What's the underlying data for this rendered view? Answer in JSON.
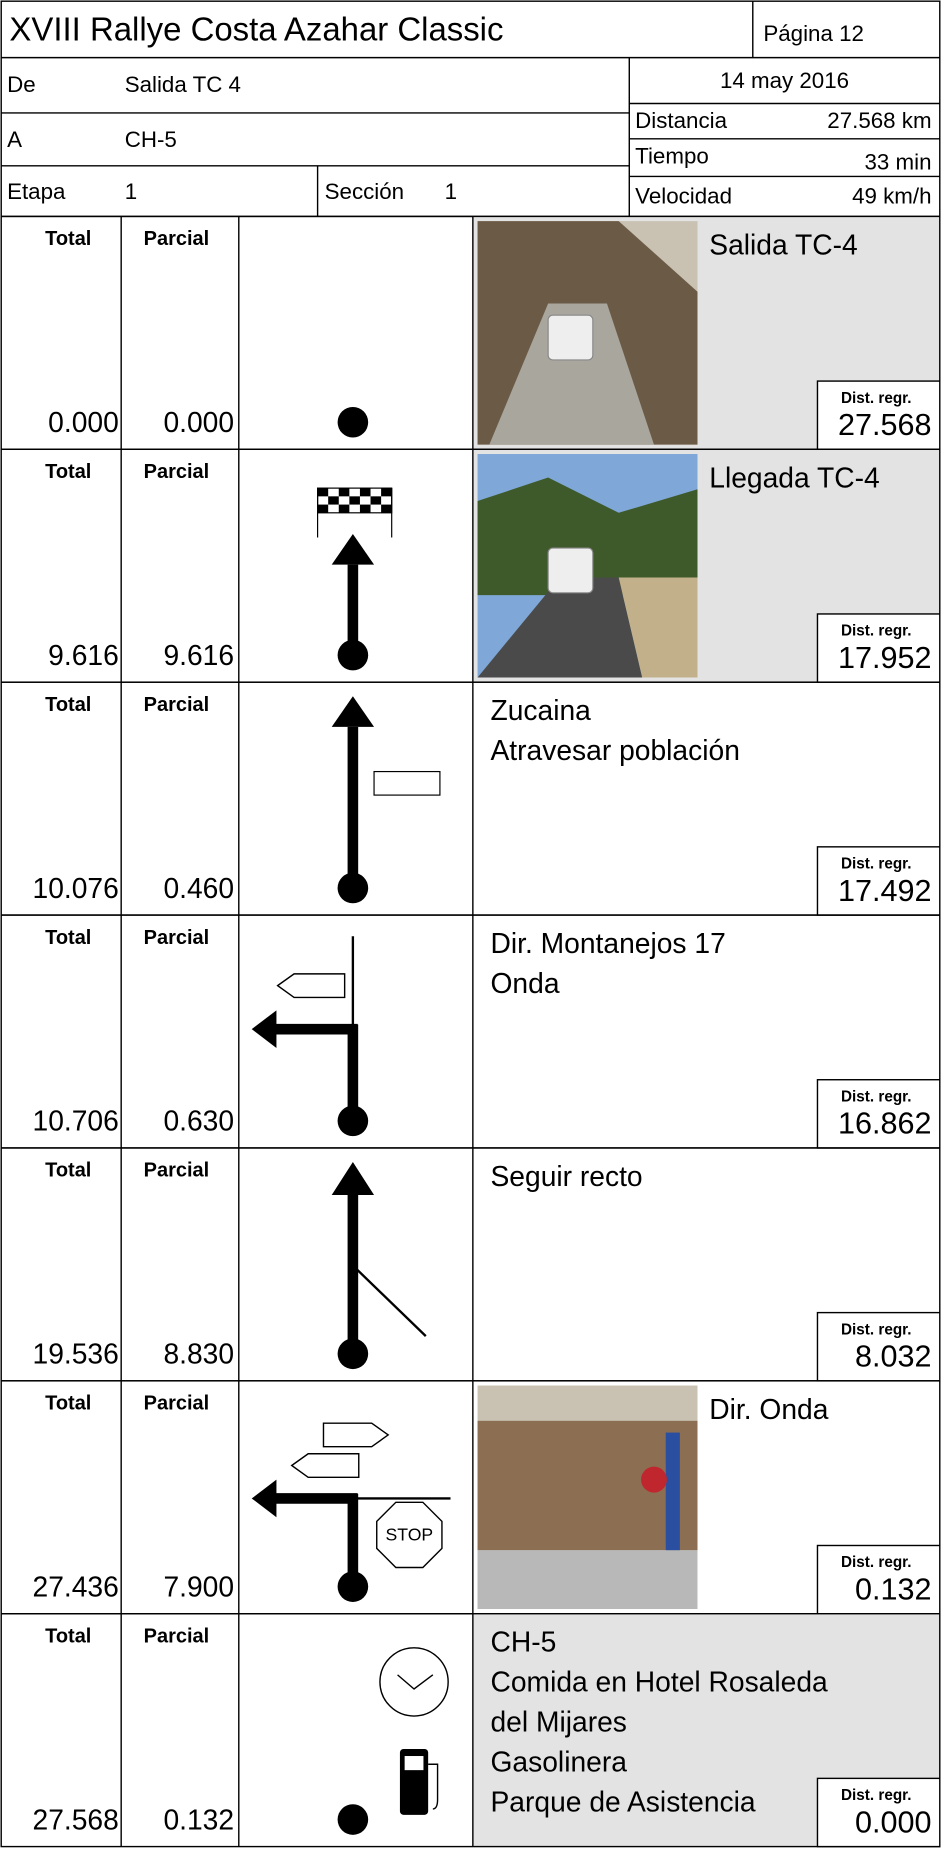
{
  "header": {
    "title": "XVIII Rallye Costa Azahar Classic",
    "page": "Página 12",
    "from_label": "De",
    "from": "Salida TC 4",
    "to_label": "A",
    "to": "CH-5",
    "stage_label": "Etapa",
    "stage": "1",
    "section_label": "Sección",
    "section": "1",
    "date": "14 may 2016",
    "distance_label": "Distancia",
    "distance": "27.568 km",
    "time_label": "Tiempo",
    "time": "33 min",
    "speed_label": "Velocidad",
    "speed": "49 km/h"
  },
  "labels": {
    "total": "Total",
    "partial": "Parcial",
    "dist_regr": "Dist. regr."
  },
  "rows": [
    {
      "total": "0.000",
      "partial": "0.000",
      "text": [
        "Salida TC-4"
      ],
      "dist_regr": "27.568"
    },
    {
      "total": "9.616",
      "partial": "9.616",
      "text": [
        "Llegada TC-4"
      ],
      "dist_regr": "17.952"
    },
    {
      "total": "10.076",
      "partial": "0.460",
      "text": [
        "Zucaina",
        "Atravesar población"
      ],
      "dist_regr": "17.492"
    },
    {
      "total": "10.706",
      "partial": "0.630",
      "text": [
        "Dir. Montanejos 17",
        "Onda"
      ],
      "dist_regr": "16.862"
    },
    {
      "total": "19.536",
      "partial": "8.830",
      "text": [
        "Seguir recto"
      ],
      "dist_regr": "8.032"
    },
    {
      "total": "27.436",
      "partial": "7.900",
      "text": [
        "Dir. Onda"
      ],
      "dist_regr": "0.132"
    },
    {
      "total": "27.568",
      "partial": "0.132",
      "text": [
        "CH-5",
        "Comida en Hotel Rosaleda",
        "del Mijares",
        "Gasolinera",
        "Parque de Asistencia"
      ],
      "dist_regr": "0.000"
    }
  ]
}
